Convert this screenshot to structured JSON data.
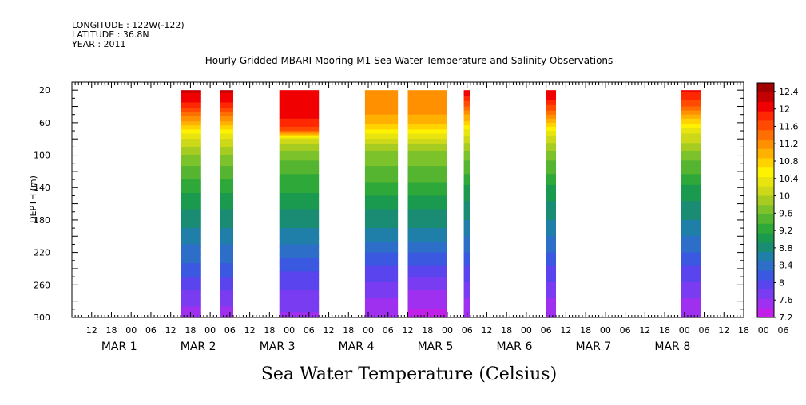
{
  "meta": {
    "longitude": "LONGITUDE : 122W(-122)",
    "latitude": "LATITUDE : 36.8N",
    "year": "YEAR : 2011"
  },
  "chart_data": {
    "type": "heatmap",
    "title": "Hourly Gridded MBARI Mooring M1 Sea Water Temperature and Salinity Observations",
    "xlabel": "Sea Water Temperature (Celsius)",
    "ylabel": "DEPTH (m)",
    "x_range_hours_from_mar1_00": [
      -18,
      186
    ],
    "y_ticks": [
      20,
      60,
      100,
      140,
      180,
      220,
      260,
      300
    ],
    "ylim": [
      300,
      10
    ],
    "hour_tick_labels": [
      "12",
      "18",
      "00",
      "06",
      "12",
      "18",
      "00",
      "06",
      "12",
      "18",
      "00",
      "06",
      "12",
      "18",
      "00",
      "06",
      "12",
      "18",
      "00",
      "06",
      "12",
      "18",
      "00",
      "06",
      "12",
      "18",
      "00",
      "06",
      "12",
      "18",
      "00",
      "06",
      "12",
      "18",
      "00",
      "06"
    ],
    "day_labels": [
      {
        "month": "MAR",
        "day": "1"
      },
      {
        "month": "MAR",
        "day": "2"
      },
      {
        "month": "MAR",
        "day": "3"
      },
      {
        "month": "MAR",
        "day": "4"
      },
      {
        "month": "MAR",
        "day": "5"
      },
      {
        "month": "MAR",
        "day": "6"
      },
      {
        "month": "MAR",
        "day": "7"
      },
      {
        "month": "MAR",
        "day": "8"
      }
    ],
    "depths": [
      20,
      30,
      40,
      50,
      60,
      70,
      80,
      90,
      100,
      120,
      140,
      160,
      180,
      200,
      220,
      240,
      260,
      280,
      300
    ],
    "segments": [
      {
        "start_hour": 15,
        "end_hour": 21,
        "profile": [
          12.2,
          12.1,
          11.8,
          11.4,
          11.0,
          10.6,
          10.2,
          10.0,
          9.8,
          9.5,
          9.2,
          9.0,
          8.8,
          8.6,
          8.4,
          8.2,
          7.9,
          7.7,
          7.5
        ]
      },
      {
        "start_hour": 27,
        "end_hour": 31,
        "profile": [
          12.2,
          12.1,
          11.8,
          11.4,
          11.0,
          10.6,
          10.2,
          10.0,
          9.8,
          9.5,
          9.2,
          9.0,
          8.8,
          8.6,
          8.4,
          8.2,
          7.9,
          7.7,
          7.5
        ]
      },
      {
        "start_hour": 45,
        "end_hour": 57,
        "profile": [
          12.1,
          12.1,
          12.0,
          12.0,
          11.9,
          11.6,
          10.2,
          9.9,
          9.7,
          9.4,
          9.2,
          9.0,
          8.8,
          8.6,
          8.4,
          8.1,
          7.9,
          7.7,
          7.6
        ]
      },
      {
        "start_hour": 71,
        "end_hour": 81,
        "profile": [
          11.3,
          11.3,
          11.2,
          11.1,
          10.9,
          10.6,
          10.2,
          9.9,
          9.7,
          9.5,
          9.3,
          9.0,
          8.8,
          8.6,
          8.3,
          8.0,
          7.8,
          7.6,
          7.4
        ]
      },
      {
        "start_hour": 84,
        "end_hour": 96,
        "profile": [
          11.3,
          11.3,
          11.2,
          11.1,
          10.9,
          10.6,
          10.2,
          9.9,
          9.7,
          9.5,
          9.3,
          9.0,
          8.8,
          8.6,
          8.3,
          8.0,
          7.7,
          7.5,
          7.3
        ]
      },
      {
        "start_hour": 101,
        "end_hour": 103,
        "profile": [
          12.1,
          11.9,
          11.5,
          11.1,
          10.8,
          10.4,
          10.1,
          9.9,
          9.7,
          9.4,
          9.1,
          8.9,
          8.7,
          8.5,
          8.3,
          8.0,
          7.8,
          7.6,
          7.5
        ]
      },
      {
        "start_hour": 126,
        "end_hour": 129,
        "profile": [
          12.1,
          12.0,
          11.7,
          11.3,
          10.9,
          10.4,
          10.1,
          9.9,
          9.7,
          9.4,
          9.1,
          8.9,
          8.7,
          8.5,
          8.3,
          8.0,
          7.8,
          7.6,
          7.5
        ]
      },
      {
        "start_hour": 167,
        "end_hour": 173,
        "profile": [
          12.0,
          11.8,
          11.5,
          11.1,
          10.7,
          10.3,
          10.1,
          9.9,
          9.7,
          9.4,
          9.1,
          8.9,
          8.7,
          8.5,
          8.3,
          8.0,
          7.8,
          7.6,
          7.5
        ]
      }
    ],
    "colorbar": {
      "ticks": [
        "12.4",
        "12",
        "11.6",
        "11.2",
        "10.8",
        "10.4",
        "10",
        "9.6",
        "9.2",
        "8.8",
        "8.4",
        "8",
        "7.6",
        "7.2"
      ],
      "min": 7.2,
      "max": 12.6,
      "colors": [
        "#c020e8",
        "#a030f0",
        "#7a3cf0",
        "#5a44ee",
        "#3a58e0",
        "#2c6ec8",
        "#1f7fa8",
        "#1a8c74",
        "#1a9a4e",
        "#2fa83a",
        "#55b530",
        "#7cc22a",
        "#a6cc22",
        "#ccd818",
        "#e8e410",
        "#fff200",
        "#ffd200",
        "#ffb000",
        "#ff9000",
        "#ff6e00",
        "#ff4a00",
        "#ff2800",
        "#f00000",
        "#c40000",
        "#a00000"
      ]
    }
  }
}
